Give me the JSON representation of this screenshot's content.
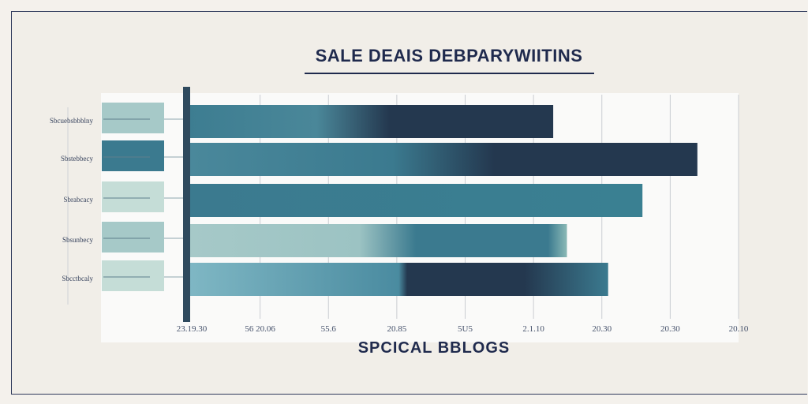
{
  "chart_data": {
    "type": "bar",
    "orientation": "horizontal",
    "title": "SALE DEAIS DEBPARYWIITINS",
    "xlabel": "SPCICAL BBLOGS",
    "ylabel": "",
    "categories": [
      "Sbcuebsbbblny",
      "Sbstebbecy",
      "Sbrabcacy",
      "Sbsunbecy",
      "Sbcctbcaly"
    ],
    "x_tick_labels": [
      "23.19.30",
      "56 20.06",
      "55.6",
      "20.85",
      "5U5",
      "2.1.10",
      "20.30",
      "20.30",
      "20.10"
    ],
    "xlim": [
      0,
      8
    ],
    "values": [
      5.3,
      7.4,
      6.6,
      5.5,
      6.1
    ],
    "grid": true,
    "legend": "left",
    "colors": {
      "dark": "#24384f",
      "mid": "#3b7a8f",
      "light": "#a6c9c8",
      "pale": "#c5ddd7",
      "axis": "#2f4a5e"
    }
  }
}
